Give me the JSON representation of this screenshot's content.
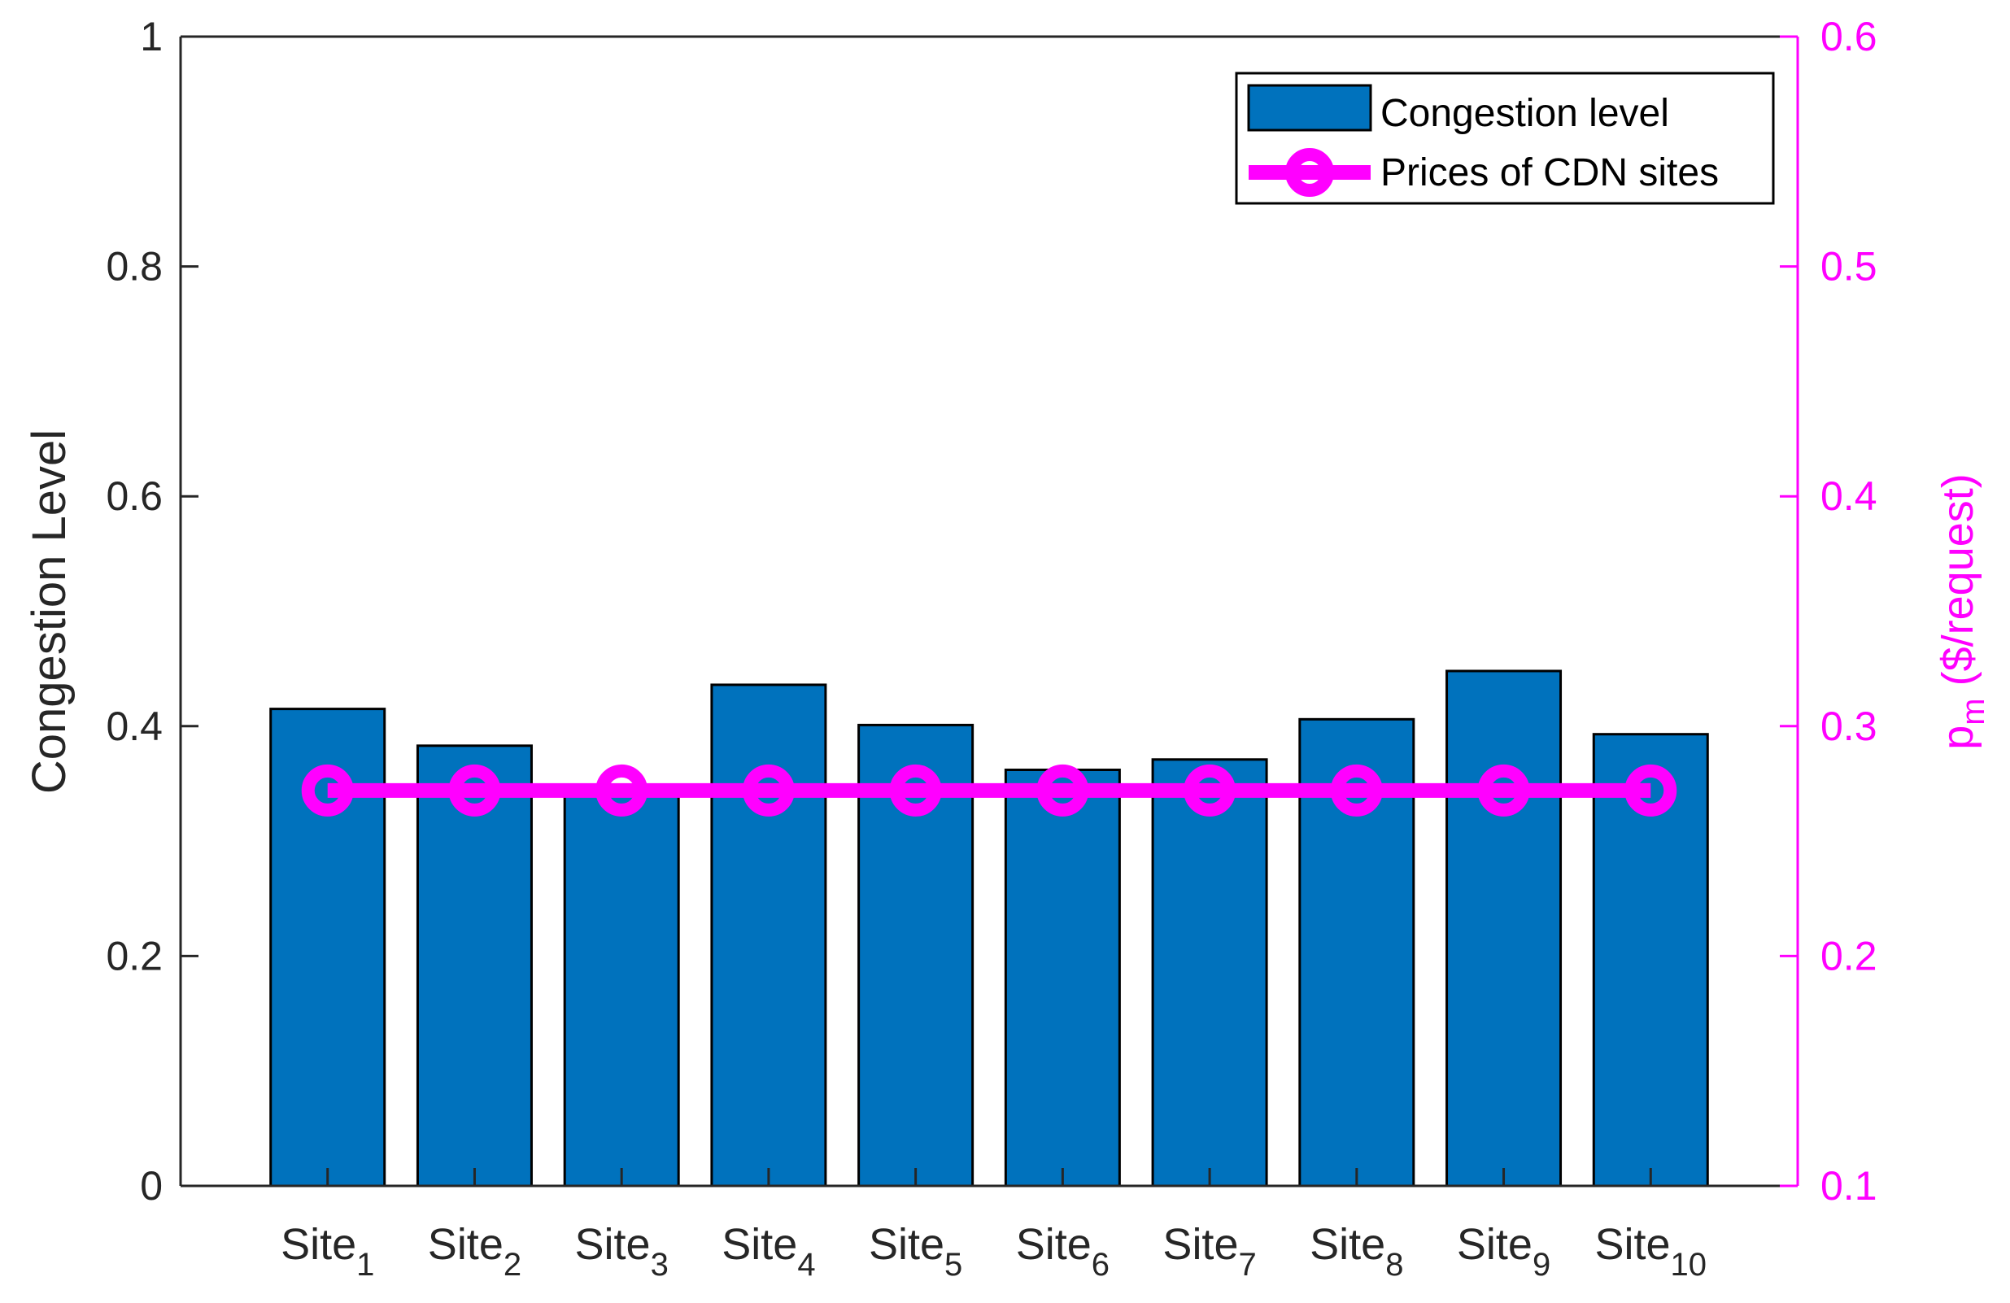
{
  "chart_data": {
    "type": "bar",
    "categories": [
      {
        "base": "Site",
        "sub": "1"
      },
      {
        "base": "Site",
        "sub": "2"
      },
      {
        "base": "Site",
        "sub": "3"
      },
      {
        "base": "Site",
        "sub": "4"
      },
      {
        "base": "Site",
        "sub": "5"
      },
      {
        "base": "Site",
        "sub": "6"
      },
      {
        "base": "Site",
        "sub": "7"
      },
      {
        "base": "Site",
        "sub": "8"
      },
      {
        "base": "Site",
        "sub": "9"
      },
      {
        "base": "Site",
        "sub": "10"
      }
    ],
    "series": [
      {
        "name": "Congestion level",
        "type": "bar",
        "axis": "left",
        "color": "#0072BD",
        "values": [
          0.415,
          0.383,
          0.347,
          0.436,
          0.401,
          0.362,
          0.371,
          0.406,
          0.448,
          0.393
        ]
      },
      {
        "name": "Prices of CDN sites",
        "type": "line",
        "marker": "circle",
        "axis": "right",
        "color": "#FF00FF",
        "values": [
          0.272,
          0.272,
          0.272,
          0.272,
          0.272,
          0.272,
          0.272,
          0.272,
          0.272,
          0.272
        ]
      }
    ],
    "y_left": {
      "label": "Congestion Level",
      "ylim": [
        0,
        1
      ],
      "ticks": [
        0,
        0.2,
        0.4,
        0.6,
        0.8,
        1
      ],
      "tick_labels": [
        "0",
        "0.2",
        "0.4",
        "0.6",
        "0.8",
        "1"
      ]
    },
    "y_right": {
      "label_main": "p",
      "label_sub": "m",
      "label_rest": " ($/request)",
      "ylim": [
        0.1,
        0.6
      ],
      "ticks": [
        0.1,
        0.2,
        0.3,
        0.4,
        0.5,
        0.6
      ],
      "tick_labels": [
        "0.1",
        "0.2",
        "0.3",
        "0.4",
        "0.5",
        "0.6"
      ],
      "color": "#FF00FF"
    },
    "legend": {
      "position": "top-right",
      "entries": [
        "Congestion level",
        "Prices of CDN sites"
      ]
    },
    "grid": false
  }
}
